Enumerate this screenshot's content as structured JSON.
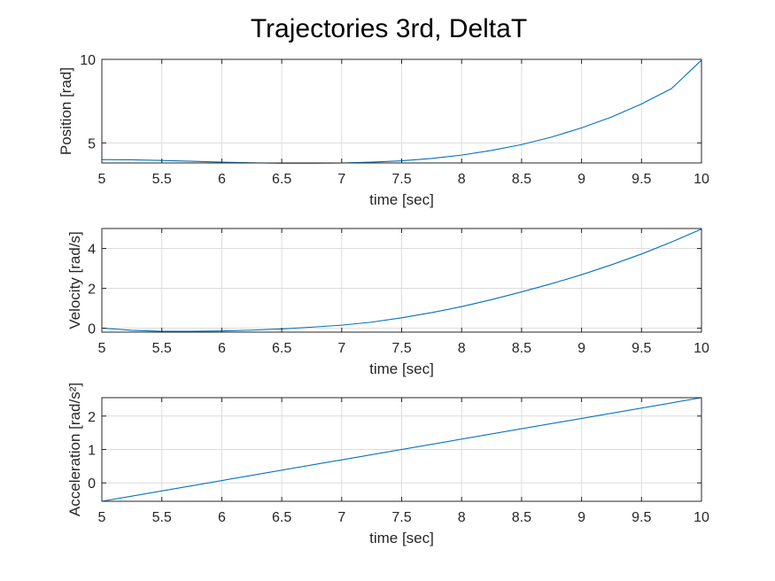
{
  "figure": {
    "title": "Trajectories 3rd, DeltaT"
  },
  "chart_data": [
    {
      "type": "line",
      "xlabel": "time [sec]",
      "ylabel": "Position [rad]",
      "xlim": [
        5,
        10
      ],
      "ylim": [
        3.8,
        10
      ],
      "xticks": [
        5,
        5.5,
        6,
        6.5,
        7,
        7.5,
        8,
        8.5,
        9,
        9.5,
        10
      ],
      "xticklabels": [
        "5",
        "5.5",
        "6",
        "6.5",
        "7",
        "7.5",
        "8",
        "8.5",
        "9",
        "9.5",
        "10"
      ],
      "yticks": [
        5,
        10
      ],
      "yticklabels": [
        "5",
        "10"
      ],
      "grid": true,
      "color": "#0072BD",
      "x": [
        5,
        5.25,
        5.5,
        5.75,
        6,
        6.25,
        6.5,
        6.75,
        7,
        7.25,
        7.5,
        7.75,
        8,
        8.25,
        8.5,
        8.75,
        9,
        9.25,
        9.5,
        9.75,
        10
      ],
      "y": [
        4.0,
        3.99,
        3.95,
        3.9,
        3.85,
        3.81,
        3.78,
        3.78,
        3.8,
        3.85,
        3.93,
        4.07,
        4.27,
        4.55,
        4.9,
        5.35,
        5.9,
        6.55,
        7.33,
        8.25,
        9.95
      ]
    },
    {
      "type": "line",
      "xlabel": "time [sec]",
      "ylabel": "Velocity [rad/s]",
      "xlim": [
        5,
        10
      ],
      "ylim": [
        -0.2,
        5
      ],
      "xticks": [
        5,
        5.5,
        6,
        6.5,
        7,
        7.5,
        8,
        8.5,
        9,
        9.5,
        10
      ],
      "xticklabels": [
        "5",
        "5.5",
        "6",
        "6.5",
        "7",
        "7.5",
        "8",
        "8.5",
        "9",
        "9.5",
        "10"
      ],
      "yticks": [
        0,
        2,
        4
      ],
      "yticklabels": [
        "0",
        "2",
        "4"
      ],
      "grid": true,
      "color": "#0072BD",
      "x": [
        5,
        5.25,
        5.5,
        5.75,
        6,
        6.25,
        6.5,
        6.75,
        7,
        7.25,
        7.5,
        7.75,
        8,
        8.25,
        8.5,
        8.75,
        9,
        9.25,
        9.5,
        9.75,
        10
      ],
      "y": [
        0.0,
        -0.11,
        -0.16,
        -0.16,
        -0.14,
        -0.1,
        -0.04,
        0.05,
        0.15,
        0.3,
        0.52,
        0.78,
        1.08,
        1.43,
        1.82,
        2.23,
        2.68,
        3.18,
        3.72,
        4.32,
        4.97
      ]
    },
    {
      "type": "line",
      "xlabel": "time [sec]",
      "ylabel": "Acceleration [rad/s²]",
      "xlim": [
        5,
        10
      ],
      "ylim": [
        -0.55,
        2.55
      ],
      "xticks": [
        5,
        5.5,
        6,
        6.5,
        7,
        7.5,
        8,
        8.5,
        9,
        9.5,
        10
      ],
      "xticklabels": [
        "5",
        "5.5",
        "6",
        "6.5",
        "7",
        "7.5",
        "8",
        "8.5",
        "9",
        "9.5",
        "10"
      ],
      "yticks": [
        0,
        1,
        2
      ],
      "yticklabels": [
        "0",
        "1",
        "2"
      ],
      "grid": true,
      "color": "#0072BD",
      "x": [
        5,
        10
      ],
      "y": [
        -0.55,
        2.55
      ]
    }
  ]
}
